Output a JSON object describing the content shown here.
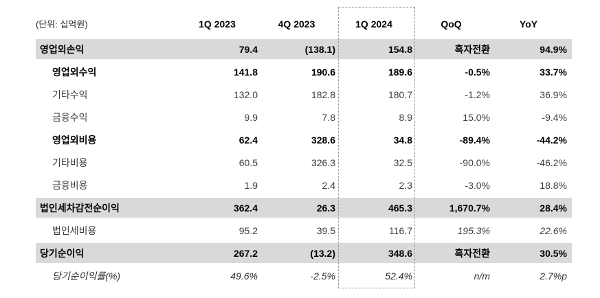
{
  "table": {
    "unit_label": "(단위: 십억원)",
    "columns": [
      "1Q 2023",
      "4Q 2023",
      "1Q 2024",
      "QoQ",
      "YoY"
    ],
    "highlighted_column": "1Q 2024",
    "rows": [
      {
        "label": "영업외손익",
        "style": "summary",
        "values": [
          "79.4",
          "(138.1)",
          "154.8",
          "흑자전환",
          "94.9%"
        ]
      },
      {
        "label": "영업외수익",
        "style": "subtotal",
        "values": [
          "141.8",
          "190.6",
          "189.6",
          "-0.5%",
          "33.7%"
        ]
      },
      {
        "label": "기타수익",
        "style": "detail",
        "values": [
          "132.0",
          "182.8",
          "180.7",
          "-1.2%",
          "36.9%"
        ]
      },
      {
        "label": "금융수익",
        "style": "detail",
        "values": [
          "9.9",
          "7.8",
          "8.9",
          "15.0%",
          "-9.4%"
        ]
      },
      {
        "label": "영업외비용",
        "style": "subtotal",
        "values": [
          "62.4",
          "328.6",
          "34.8",
          "-89.4%",
          "-44.2%"
        ]
      },
      {
        "label": "기타비용",
        "style": "detail",
        "values": [
          "60.5",
          "326.3",
          "32.5",
          "-90.0%",
          "-46.2%"
        ]
      },
      {
        "label": "금융비용",
        "style": "detail",
        "values": [
          "1.9",
          "2.4",
          "2.3",
          "-3.0%",
          "18.8%"
        ]
      },
      {
        "label": "법인세차감전순이익",
        "style": "summary",
        "values": [
          "362.4",
          "26.3",
          "465.3",
          "1,670.7%",
          "28.4%"
        ]
      },
      {
        "label": "법인세비용",
        "style": "detail",
        "values": [
          "95.2",
          "39.5",
          "116.7",
          "195.3%",
          "22.6%"
        ],
        "italic_cols": [
          3,
          4
        ]
      },
      {
        "label": "당기순이익",
        "style": "summary",
        "values": [
          "267.2",
          "(13.2)",
          "348.6",
          "흑자전환",
          "30.5%"
        ]
      },
      {
        "label": "당기순이익률(%)",
        "style": "ratio",
        "values": [
          "49.6%",
          "-2.5%",
          "52.4%",
          "n/m",
          "2.7%p"
        ]
      }
    ]
  },
  "colors": {
    "summary_band": "#d9d9d9",
    "dashed_highlight_border": "#9a9a9a",
    "text": "#1a1a1a"
  }
}
